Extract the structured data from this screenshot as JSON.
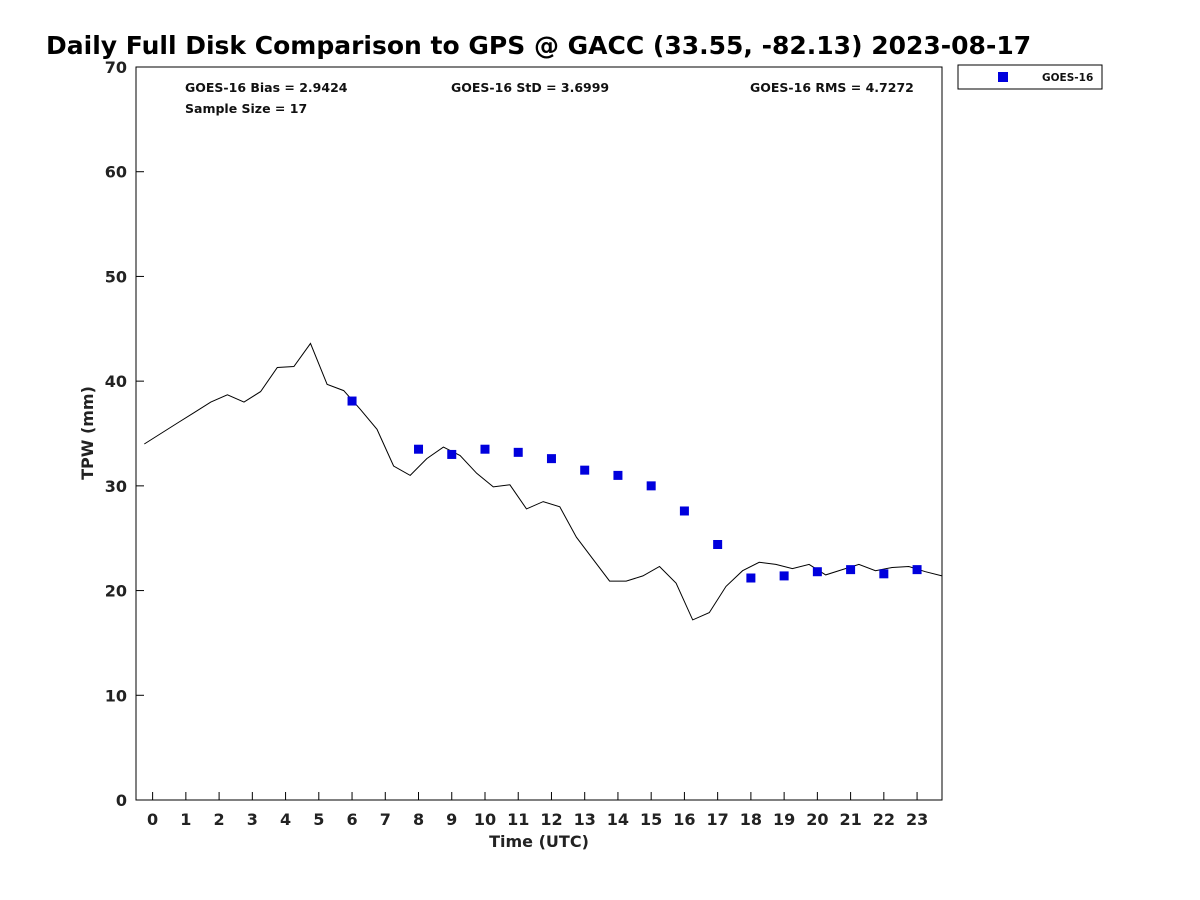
{
  "chart_data": {
    "type": "line",
    "title": "Daily Full Disk Comparison to GPS @ GACC (33.55, -82.13) 2023-08-17",
    "xlabel": "Time (UTC)",
    "ylabel": "TPW (mm)",
    "xlim": [
      -0.5,
      23.75
    ],
    "ylim": [
      0,
      70
    ],
    "x_ticks": [
      0,
      1,
      2,
      3,
      4,
      5,
      6,
      7,
      8,
      9,
      10,
      11,
      12,
      13,
      14,
      15,
      16,
      17,
      18,
      19,
      20,
      21,
      22,
      23
    ],
    "y_ticks": [
      0,
      10,
      20,
      30,
      40,
      50,
      60,
      70
    ],
    "grid": false,
    "legend": {
      "position": "top-right-outside",
      "entries": [
        "GOES-16"
      ]
    },
    "stats": {
      "bias": "GOES-16 Bias = 2.9424",
      "std": "GOES-16 StD = 3.6999",
      "rms": "GOES-16 RMS = 4.7272",
      "sample": "Sample Size = 17"
    },
    "series": [
      {
        "kind": "line",
        "color": "#000000",
        "points": [
          [
            -0.25,
            34.0
          ],
          [
            0.25,
            35.0
          ],
          [
            0.75,
            36.0
          ],
          [
            1.25,
            37.0
          ],
          [
            1.75,
            38.0
          ],
          [
            2.25,
            38.7
          ],
          [
            2.75,
            38.0
          ],
          [
            3.25,
            39.0
          ],
          [
            3.75,
            41.3
          ],
          [
            4.25,
            41.4
          ],
          [
            4.75,
            43.6
          ],
          [
            5.25,
            39.7
          ],
          [
            5.75,
            39.1
          ],
          [
            6.25,
            37.3
          ],
          [
            6.75,
            35.4
          ],
          [
            7.25,
            31.9
          ],
          [
            7.75,
            31.0
          ],
          [
            8.25,
            32.6
          ],
          [
            8.75,
            33.7
          ],
          [
            9.25,
            32.9
          ],
          [
            9.75,
            31.2
          ],
          [
            10.25,
            29.9
          ],
          [
            10.75,
            30.1
          ],
          [
            11.25,
            27.8
          ],
          [
            11.75,
            28.5
          ],
          [
            12.25,
            28.0
          ],
          [
            12.75,
            25.1
          ],
          [
            13.25,
            23.0
          ],
          [
            13.75,
            20.9
          ],
          [
            14.25,
            20.9
          ],
          [
            14.75,
            21.4
          ],
          [
            15.25,
            22.3
          ],
          [
            15.75,
            20.7
          ],
          [
            16.25,
            17.2
          ],
          [
            16.75,
            17.9
          ],
          [
            17.25,
            20.4
          ],
          [
            17.75,
            21.9
          ],
          [
            18.25,
            22.7
          ],
          [
            18.75,
            22.5
          ],
          [
            19.25,
            22.1
          ],
          [
            19.75,
            22.5
          ],
          [
            20.25,
            21.5
          ],
          [
            20.75,
            22.0
          ],
          [
            21.25,
            22.5
          ],
          [
            21.75,
            21.9
          ],
          [
            22.25,
            22.2
          ],
          [
            22.75,
            22.3
          ],
          [
            23.25,
            21.8
          ],
          [
            23.75,
            21.4
          ]
        ]
      },
      {
        "name": "GOES-16",
        "kind": "scatter",
        "color": "#0000dd",
        "points": [
          [
            6,
            38.1
          ],
          [
            8,
            33.5
          ],
          [
            9,
            33.0
          ],
          [
            10,
            33.5
          ],
          [
            11,
            33.2
          ],
          [
            12,
            32.6
          ],
          [
            13,
            31.5
          ],
          [
            14,
            31.0
          ],
          [
            15,
            30.0
          ],
          [
            16,
            27.6
          ],
          [
            17,
            24.4
          ],
          [
            18,
            21.2
          ],
          [
            19,
            21.4
          ],
          [
            20,
            21.8
          ],
          [
            21,
            22.0
          ],
          [
            22,
            21.6
          ],
          [
            23,
            22.0
          ]
        ]
      }
    ]
  }
}
